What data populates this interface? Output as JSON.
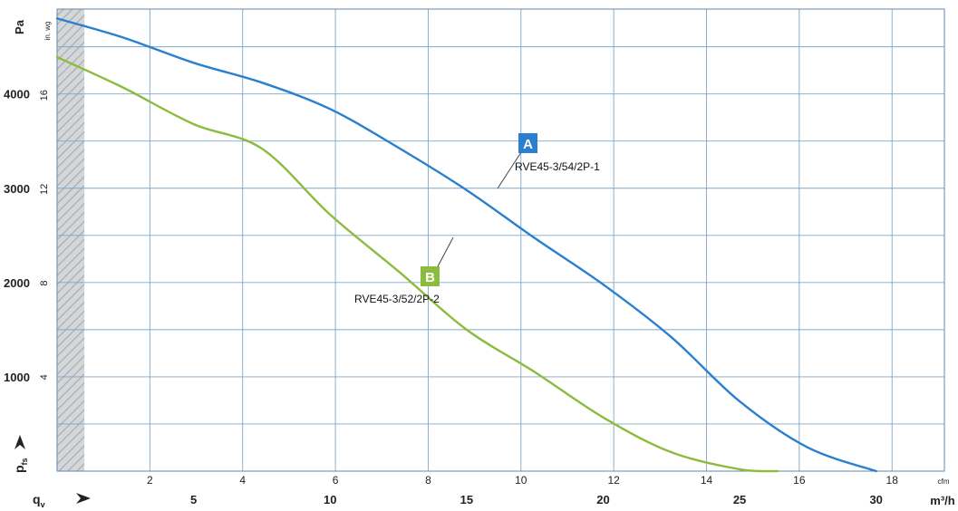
{
  "chart_data": {
    "type": "line",
    "x_primary": {
      "unit": "m³/h",
      "label": "qv",
      "ticks": [
        5,
        10,
        15,
        20,
        25,
        30
      ],
      "range": [
        0,
        32.5
      ]
    },
    "x_secondary": {
      "unit": "cfm",
      "ticks": [
        2,
        4,
        6,
        8,
        10,
        12,
        14,
        16,
        18
      ]
    },
    "y_primary": {
      "unit": "Pa",
      "label": "pfs",
      "ticks": [
        1000,
        2000,
        3000,
        4000
      ],
      "range": [
        0,
        4900
      ]
    },
    "y_secondary": {
      "unit": "in. wg",
      "ticks": [
        4,
        8,
        12,
        16
      ]
    },
    "hatched_region_x": [
      0,
      1.0
    ],
    "grid": true,
    "series": [
      {
        "badge": "A",
        "name": "RVE45-3/54/2P-1",
        "color": "#2a7fd0",
        "x": [
          0,
          2.4,
          5,
          7.5,
          10,
          12.5,
          15,
          17.5,
          20,
          22.5,
          25,
          27.5,
          30
        ],
        "y": [
          4800,
          4600,
          4330,
          4120,
          3840,
          3430,
          2980,
          2470,
          1980,
          1420,
          740,
          250,
          0
        ]
      },
      {
        "badge": "B",
        "name": "RVE45-3/52/2P-2",
        "color": "#8cbc3e",
        "x": [
          0,
          2.4,
          5,
          7.5,
          10,
          12.5,
          15,
          17.5,
          20,
          22.5,
          25,
          26.4
        ],
        "y": [
          4390,
          4070,
          3680,
          3420,
          2720,
          2120,
          1500,
          1050,
          570,
          200,
          20,
          0
        ]
      }
    ]
  }
}
